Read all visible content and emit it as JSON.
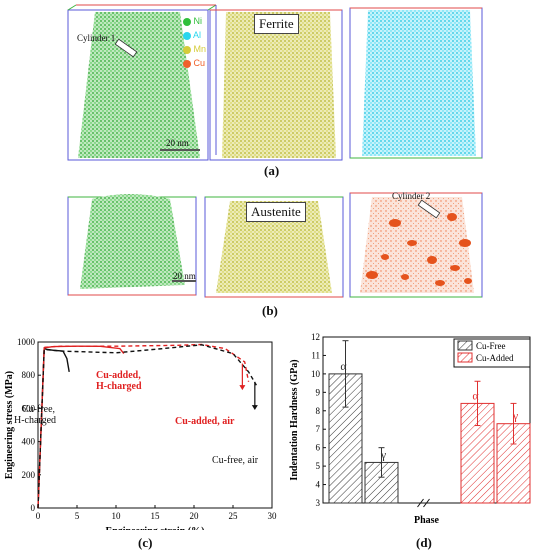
{
  "panel_a": {
    "label": "(a)",
    "box_label": "Ferrite",
    "cylinder_label": "Cylinder 1",
    "scalebar_label": "20 nm",
    "legend": [
      {
        "symbol": "Ni",
        "color": "#2fbf3a"
      },
      {
        "symbol": "Al",
        "color": "#29d6ee"
      },
      {
        "symbol": "Mn",
        "color": "#d5cc3a"
      },
      {
        "symbol": "Cu",
        "color": "#f0602a"
      }
    ]
  },
  "panel_b": {
    "label": "(b)",
    "box_label": "Austenite",
    "cylinder_label": "Cylinder 2",
    "scalebar_label": "20 nm"
  },
  "panel_c": {
    "label": "(c)",
    "annotations": {
      "cufree_h_1": "Cu-free,",
      "cufree_h_2": "H-charged",
      "cuadded_h_1": "Cu-added,",
      "cuadded_h_2": "H-charged",
      "cuadded_air": "Cu-added, air",
      "cufree_air": "Cu-free, air"
    }
  },
  "panel_d": {
    "label": "(d)"
  },
  "chart_data": [
    {
      "type": "line",
      "xlabel": "Engineering strain (%)",
      "ylabel": "Engineering stress (MPa)",
      "xlim": [
        0,
        30
      ],
      "ylim": [
        0,
        1000
      ],
      "xticks": [
        "0",
        "5",
        "10",
        "15",
        "20",
        "25",
        "30"
      ],
      "yticks": [
        "0",
        "200",
        "400",
        "600",
        "800",
        "1000"
      ],
      "series": [
        {
          "color": "#111111",
          "dash": "solid",
          "points": [
            [
              0,
              0
            ],
            [
              0.8,
              960
            ],
            [
              1.2,
              955
            ],
            [
              2,
              950
            ],
            [
              3.2,
              945
            ],
            [
              3.7,
              900
            ],
            [
              4,
              820
            ]
          ]
        },
        {
          "color": "#e02020",
          "dash": "solid",
          "points": [
            [
              0,
              0
            ],
            [
              0.8,
              965
            ],
            [
              2,
              972
            ],
            [
              5,
              975
            ],
            [
              8,
              974
            ],
            [
              10.5,
              960
            ],
            [
              11,
              930
            ]
          ]
        },
        {
          "color": "#e02020",
          "dash": "dashed",
          "points": [
            [
              0,
              0
            ],
            [
              0.8,
              968
            ],
            [
              3,
              975
            ],
            [
              10,
              975
            ],
            [
              18,
              980
            ],
            [
              21,
              985
            ],
            [
              24,
              960
            ],
            [
              26.5,
              880
            ],
            [
              27,
              760
            ]
          ]
        },
        {
          "color": "#111111",
          "dash": "dashed",
          "points": [
            [
              0,
              0
            ],
            [
              0.8,
              955
            ],
            [
              3,
              945
            ],
            [
              10,
              935
            ],
            [
              16,
              960
            ],
            [
              21,
              983
            ],
            [
              25,
              930
            ],
            [
              27,
              820
            ],
            [
              28,
              740
            ]
          ]
        }
      ]
    },
    {
      "type": "bar",
      "xlabel": "Phase",
      "ylabel": "Indentation Hardness (GPa)",
      "ylim": [
        3,
        12
      ],
      "yticks": [
        "3",
        "4",
        "5",
        "6",
        "7",
        "8",
        "9",
        "10",
        "11",
        "12"
      ],
      "legend": [
        "Cu-Free",
        "Cu-Added"
      ],
      "series": [
        {
          "name": "Cu-Free",
          "categories": [
            "α",
            "γ"
          ],
          "values": [
            10.0,
            5.2
          ],
          "errors": [
            1.8,
            0.8
          ],
          "color": "#333333"
        },
        {
          "name": "Cu-Added",
          "categories": [
            "α",
            "γ"
          ],
          "values": [
            8.4,
            7.3
          ],
          "errors": [
            1.2,
            1.1
          ],
          "color": "#e03030"
        }
      ]
    }
  ]
}
